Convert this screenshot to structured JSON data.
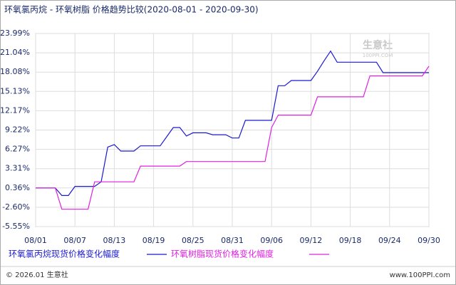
{
  "chart_data": {
    "type": "line",
    "title": "环氧氯丙烷 - 环氧树脂 价格趋势比较(2020-08-01 - 2020-09-30)",
    "categories": [
      "08/01",
      null,
      null,
      null,
      null,
      null,
      "08/07",
      null,
      null,
      null,
      null,
      null,
      "08/13",
      null,
      null,
      null,
      null,
      null,
      "08/19",
      null,
      null,
      null,
      null,
      null,
      "08/25",
      null,
      null,
      null,
      null,
      null,
      "08/31",
      null,
      null,
      null,
      null,
      null,
      "09/06",
      null,
      null,
      null,
      null,
      null,
      "09/12",
      null,
      null,
      null,
      null,
      null,
      "09/18",
      null,
      null,
      null,
      null,
      null,
      "09/24",
      null,
      null,
      null,
      null,
      null,
      "09/30"
    ],
    "series": [
      {
        "name": "环氧氯丙烷现货价格变化幅度",
        "color": "#1a1ad0",
        "values": [
          0.36,
          0.36,
          0.36,
          0.36,
          -0.8,
          -0.8,
          0.6,
          0.6,
          0.6,
          0.6,
          1.3,
          6.6,
          7.0,
          6.0,
          6.0,
          6.0,
          6.8,
          6.8,
          6.8,
          6.8,
          8.2,
          9.6,
          9.6,
          8.3,
          8.8,
          8.8,
          8.8,
          8.5,
          8.5,
          8.5,
          8.0,
          8.0,
          10.7,
          10.7,
          10.7,
          10.7,
          10.7,
          16.0,
          16.0,
          16.8,
          16.8,
          16.8,
          16.8,
          18.2,
          19.8,
          21.3,
          19.6,
          19.6,
          19.6,
          19.6,
          19.6,
          19.6,
          19.6,
          18.0,
          18.0,
          18.0,
          18.0,
          18.0,
          18.0,
          18.0,
          18.0
        ]
      },
      {
        "name": "环氧树脂现货价格变化幅度",
        "color": "#e020e0",
        "values": [
          0.36,
          0.36,
          0.36,
          0.36,
          -2.9,
          -2.9,
          -2.9,
          -2.9,
          -2.9,
          1.3,
          1.3,
          1.3,
          1.3,
          1.3,
          1.3,
          1.3,
          3.7,
          3.7,
          3.7,
          3.7,
          3.7,
          3.7,
          3.7,
          4.4,
          4.4,
          4.4,
          4.4,
          4.4,
          4.4,
          4.4,
          4.4,
          4.4,
          4.4,
          4.4,
          4.4,
          4.4,
          9.6,
          11.5,
          11.5,
          11.5,
          11.5,
          11.5,
          11.5,
          14.3,
          14.3,
          14.3,
          14.3,
          14.3,
          14.3,
          14.3,
          14.3,
          17.5,
          17.5,
          17.5,
          17.5,
          17.5,
          17.5,
          17.5,
          17.5,
          17.5,
          19.0
        ]
      }
    ],
    "ylim": [
      -5.55,
      23.99
    ],
    "yticks": [
      {
        "value": 23.99,
        "label": "23.99%"
      },
      {
        "value": 21.04,
        "label": "21.04%"
      },
      {
        "value": 18.08,
        "label": "18.08%"
      },
      {
        "value": 15.13,
        "label": "15.13%"
      },
      {
        "value": 12.17,
        "label": "12.17%"
      },
      {
        "value": 9.22,
        "label": "9.22%"
      },
      {
        "value": 6.27,
        "label": "6.27%"
      },
      {
        "value": 3.31,
        "label": "3.31%"
      },
      {
        "value": 0.36,
        "label": "0.36%"
      },
      {
        "value": -2.6,
        "label": "-2.60%"
      },
      {
        "value": -5.55,
        "label": "-5.55%"
      }
    ],
    "grid": true,
    "watermark": {
      "name": "生意社",
      "site": "100PPI.COM"
    },
    "footer": {
      "left": "© 2026.01 生意社",
      "right": "www.100PPI.com"
    }
  }
}
